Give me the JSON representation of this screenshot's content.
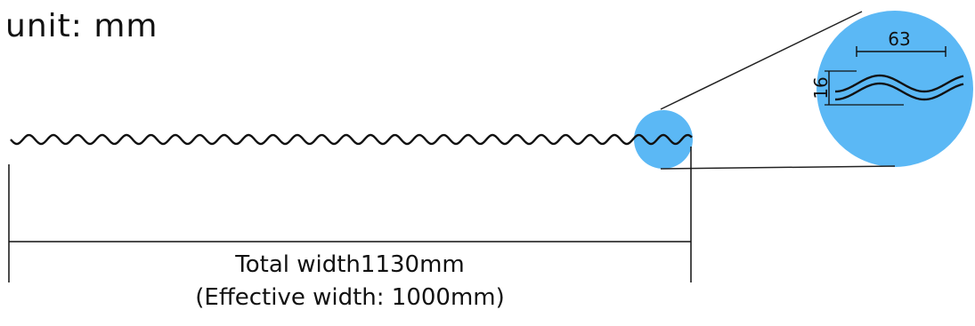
{
  "unit_label": "unit: mm",
  "total_width_label": "Total width1130mm",
  "effective_width_label": "(Effective width: 1000mm)",
  "detail": {
    "pitch_label": "63",
    "height_label": "16"
  },
  "colors": {
    "magnifier_fill": "#5bb8f5",
    "line": "#111111"
  }
}
